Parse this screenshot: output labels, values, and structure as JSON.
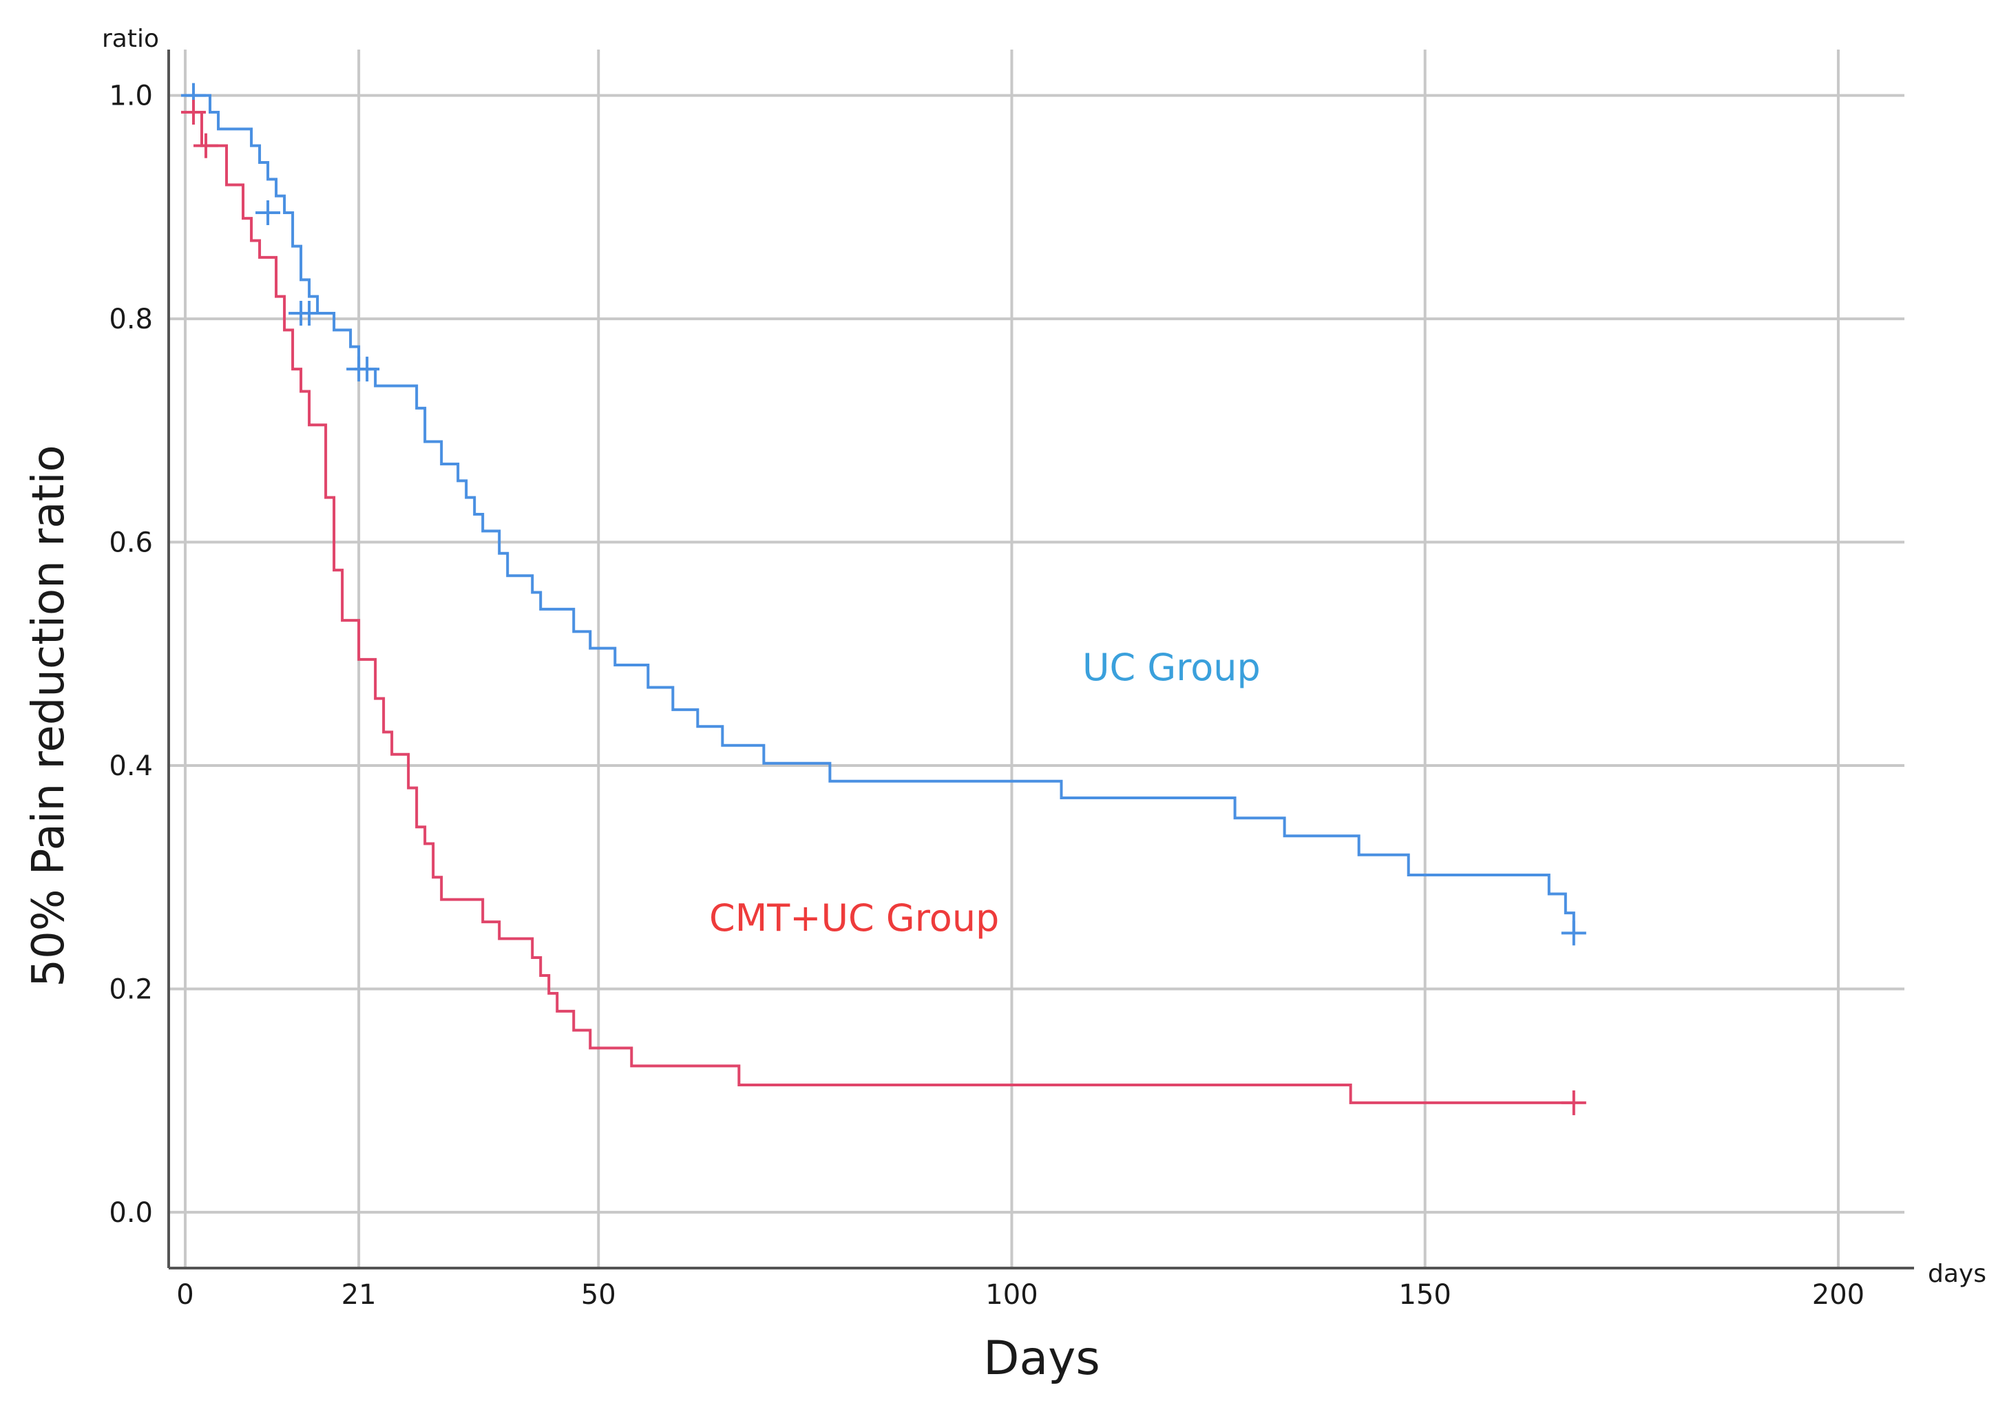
{
  "chart_data": {
    "type": "line",
    "subtype": "kaplan-meier-step",
    "title": "",
    "xlabel": "Days",
    "ylabel": "50% Pain reduction ratio",
    "x_unit_label": "days",
    "y_unit_label": "ratio",
    "xlim": [
      -2,
      210
    ],
    "ylim": [
      -0.05,
      1.03
    ],
    "xticks": [
      0,
      21,
      50,
      100,
      150,
      200
    ],
    "xtick_labels": [
      "0",
      "21",
      "50",
      "100",
      "150",
      "200"
    ],
    "yticks": [
      0.0,
      0.2,
      0.4,
      0.6,
      0.8,
      1.0
    ],
    "ytick_labels": [
      "0.0",
      "0.2",
      "0.4",
      "0.6",
      "0.8",
      "1.0"
    ],
    "grid": true,
    "legend": "inline-labels",
    "series": [
      {
        "name": "UC Group",
        "color": "#4a90e2",
        "label_color": "#3aa0dc",
        "steps": [
          [
            0,
            1.0
          ],
          [
            3,
            0.985
          ],
          [
            4,
            0.97
          ],
          [
            8,
            0.955
          ],
          [
            9,
            0.94
          ],
          [
            10,
            0.925
          ],
          [
            11,
            0.91
          ],
          [
            12,
            0.895
          ],
          [
            13,
            0.865
          ],
          [
            14,
            0.835
          ],
          [
            15,
            0.82
          ],
          [
            16,
            0.805
          ],
          [
            18,
            0.79
          ],
          [
            20,
            0.775
          ],
          [
            21,
            0.755
          ],
          [
            23,
            0.74
          ],
          [
            28,
            0.72
          ],
          [
            29,
            0.69
          ],
          [
            31,
            0.67
          ],
          [
            33,
            0.655
          ],
          [
            34,
            0.64
          ],
          [
            35,
            0.625
          ],
          [
            36,
            0.61
          ],
          [
            38,
            0.59
          ],
          [
            39,
            0.57
          ],
          [
            42,
            0.555
          ],
          [
            43,
            0.54
          ],
          [
            47,
            0.52
          ],
          [
            49,
            0.505
          ],
          [
            52,
            0.49
          ],
          [
            56,
            0.47
          ],
          [
            59,
            0.45
          ],
          [
            62,
            0.435
          ],
          [
            65,
            0.418
          ],
          [
            70,
            0.402
          ],
          [
            78,
            0.386
          ],
          [
            106,
            0.371
          ],
          [
            127,
            0.353
          ],
          [
            133,
            0.337
          ],
          [
            142,
            0.32
          ],
          [
            148,
            0.302
          ],
          [
            165,
            0.285
          ],
          [
            167,
            0.268
          ],
          [
            168,
            0.25
          ]
        ],
        "end_x": 168,
        "censored": [
          [
            1,
            1.0
          ],
          [
            10,
            0.895
          ],
          [
            14,
            0.805
          ],
          [
            15,
            0.805
          ],
          [
            21,
            0.755
          ],
          [
            22,
            0.755
          ],
          [
            168,
            0.25
          ]
        ]
      },
      {
        "name": "CMT+UC Group",
        "color": "#e0456a",
        "label_color": "#ee3b3b",
        "steps": [
          [
            0,
            0.985
          ],
          [
            2,
            0.955
          ],
          [
            5,
            0.92
          ],
          [
            7,
            0.89
          ],
          [
            8,
            0.87
          ],
          [
            9,
            0.855
          ],
          [
            11,
            0.82
          ],
          [
            12,
            0.79
          ],
          [
            13,
            0.755
          ],
          [
            14,
            0.735
          ],
          [
            15,
            0.705
          ],
          [
            17,
            0.64
          ],
          [
            18,
            0.575
          ],
          [
            19,
            0.53
          ],
          [
            21,
            0.495
          ],
          [
            23,
            0.46
          ],
          [
            24,
            0.43
          ],
          [
            25,
            0.41
          ],
          [
            27,
            0.38
          ],
          [
            28,
            0.345
          ],
          [
            29,
            0.33
          ],
          [
            30,
            0.3
          ],
          [
            31,
            0.28
          ],
          [
            36,
            0.26
          ],
          [
            38,
            0.245
          ],
          [
            42,
            0.228
          ],
          [
            43,
            0.212
          ],
          [
            44,
            0.196
          ],
          [
            45,
            0.18
          ],
          [
            47,
            0.163
          ],
          [
            49,
            0.147
          ],
          [
            54,
            0.131
          ],
          [
            67,
            0.114
          ],
          [
            141,
            0.098
          ]
        ],
        "end_x": 168,
        "censored": [
          [
            1,
            0.985
          ],
          [
            2.5,
            0.955
          ],
          [
            168,
            0.098
          ]
        ]
      }
    ]
  }
}
